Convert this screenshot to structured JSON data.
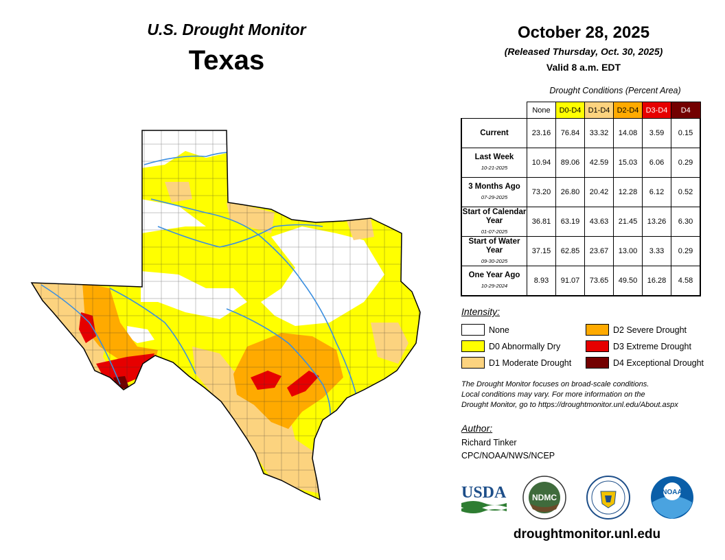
{
  "header": {
    "usdm_title": "U.S. Drought Monitor",
    "state": "Texas",
    "date": "October 28, 2025",
    "released": "(Released Thursday, Oct. 30, 2025)",
    "valid": "Valid 8 a.m. EDT"
  },
  "table": {
    "caption": "Drought Conditions (Percent Area)",
    "columns": [
      {
        "label": "None",
        "color": "#ffffff",
        "text_color": "#000000"
      },
      {
        "label": "D0-D4",
        "color": "#ffff00",
        "text_color": "#000000"
      },
      {
        "label": "D1-D4",
        "color": "#fcd37f",
        "text_color": "#000000"
      },
      {
        "label": "D2-D4",
        "color": "#ffaa00",
        "text_color": "#000000"
      },
      {
        "label": "D3-D4",
        "color": "#e60000",
        "text_color": "#ffffff"
      },
      {
        "label": "D4",
        "color": "#730000",
        "text_color": "#ffffff"
      }
    ],
    "rows": [
      {
        "label": "Current",
        "date": "",
        "values": [
          "23.16",
          "76.84",
          "33.32",
          "14.08",
          "3.59",
          "0.15"
        ]
      },
      {
        "label": "Last Week",
        "date": "10-21-2025",
        "values": [
          "10.94",
          "89.06",
          "42.59",
          "15.03",
          "6.06",
          "0.29"
        ]
      },
      {
        "label": "3 Months Ago",
        "date": "07-29-2025",
        "values": [
          "73.20",
          "26.80",
          "20.42",
          "12.28",
          "6.12",
          "0.52"
        ]
      },
      {
        "label": "Start of Calendar Year",
        "date": "01-07-2025",
        "values": [
          "36.81",
          "63.19",
          "43.63",
          "21.45",
          "13.26",
          "6.30"
        ]
      },
      {
        "label": "Start of Water Year",
        "date": "09-30-2025",
        "values": [
          "37.15",
          "62.85",
          "23.67",
          "13.00",
          "3.33",
          "0.29"
        ]
      },
      {
        "label": "One Year Ago",
        "date": "10-29-2024",
        "values": [
          "8.93",
          "91.07",
          "73.65",
          "49.50",
          "16.28",
          "4.58"
        ]
      }
    ]
  },
  "legend": {
    "title": "Intensity:",
    "items": [
      {
        "label": "None",
        "color": "#ffffff"
      },
      {
        "label": "D0 Abnormally Dry",
        "color": "#ffff00"
      },
      {
        "label": "D1 Moderate Drought",
        "color": "#fcd37f"
      },
      {
        "label": "D2 Severe Drought",
        "color": "#ffaa00"
      },
      {
        "label": "D3 Extreme Drought",
        "color": "#e60000"
      },
      {
        "label": "D4 Exceptional Drought",
        "color": "#730000"
      }
    ]
  },
  "note": {
    "line1": "The Drought Monitor focuses on broad-scale conditions.",
    "line2": "Local conditions may vary. For more information on the",
    "line3": "Drought Monitor, go to https://droughtmonitor.unl.edu/About.aspx"
  },
  "author": {
    "title": "Author:",
    "name": "Richard Tinker",
    "org": "CPC/NOAA/NWS/NCEP"
  },
  "logos": {
    "usda": "USDA",
    "ndmc": "NDMC",
    "noaa": "NOAA"
  },
  "website": "droughtmonitor.unl.edu"
}
